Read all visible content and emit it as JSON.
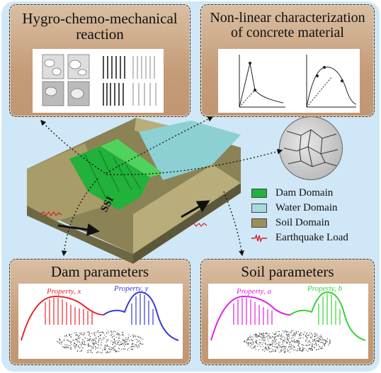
{
  "panels": {
    "hygro": {
      "title_line1": "Hygro-chemo-mechanical",
      "title_line2": "reaction"
    },
    "nonlinear": {
      "title_line1": "Non-linear characterization",
      "title_line2": "of concrete material"
    },
    "dam": {
      "title": "Dam parameters",
      "prop_x": "Property, x",
      "prop_y": "Property, y"
    },
    "soil": {
      "title": "Soil parameters",
      "prop_a": "Property, a",
      "prop_b": "Property, b"
    }
  },
  "legend": [
    {
      "label": "Dam Domain",
      "color": "#1fb33a"
    },
    {
      "label": "Water Domain",
      "color": "#a9d8de"
    },
    {
      "label": "Soil Domain",
      "color": "#9c8f5a"
    },
    {
      "label": "Earthquake Load",
      "color": "#d0212a"
    }
  ],
  "model": {
    "label": "SSI"
  },
  "colors": {
    "red": "#e8262b",
    "blue": "#3a3ad6",
    "magenta": "#e021e0",
    "green": "#36d236"
  }
}
